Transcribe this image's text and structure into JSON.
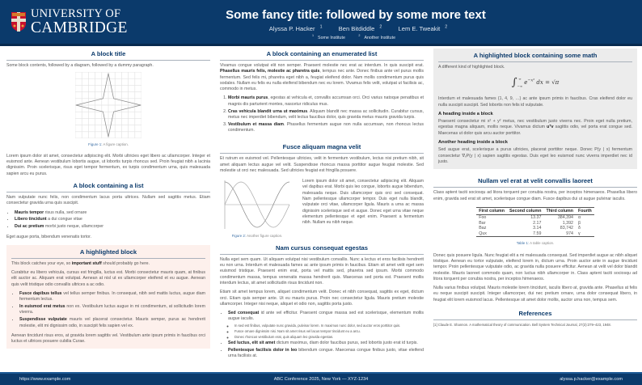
{
  "header": {
    "logo_line1": "UNIVERSITY OF",
    "logo_line2": "CAMBRIDGE",
    "title": "Some fancy title: followed by some more text",
    "authors": [
      {
        "name": "Alyssa P. Hacker",
        "sup": "1"
      },
      {
        "name": "Ben Bitdiddle",
        "sup": "2"
      },
      {
        "name": "Lem E. Tweakit",
        "sup": "2"
      }
    ],
    "affiliations": [
      {
        "sup": "1",
        "name": "Some Institute"
      },
      {
        "sup": "2",
        "name": "Another Institute"
      }
    ],
    "colors": {
      "primary": "#0b3a6b",
      "highlight": "#fdf0ec",
      "highlight_alt": "#ececec"
    }
  },
  "col1": {
    "b1": {
      "title": "A block title",
      "intro": "Some block contents, followed by a diagram, followed by a dummy paragraph.",
      "fig_label": "Figure 1:",
      "fig_caption": "A figure caption.",
      "para": "Lorem ipsum dolor sit amet, consectetur adipiscing elit. Morbi ultricies eget libero ac ullamcorper. Integer et euismod ante. Aenean vestibulum lobortis augue, ut lobortis turpis rhoncus sed. Proin feugiat nibh a lacinia dignissim. Proin scelerisque, risus eget tempor fermentum, ex turpis condimentum urna, quis malesuada sapien arcu eu purus."
    },
    "b2": {
      "title": "A block containing a list",
      "intro": "Nam vulputate nunc felis, non condimentum lacus porta ultrices. Nullam sed sagittis metus. Etiam consectetur gravida urna quis suscipit.",
      "items": [
        {
          "b": "Mauris tempor",
          "t": " risus nulla, sed ornare"
        },
        {
          "b": "Libero tincidunt",
          "t": " a dui congue vitae"
        },
        {
          "b": "Dui ac pretium",
          "t": " morbi justo neque, ullamcorper"
        }
      ],
      "outro": "Eget augue porta, bibendum venenatis tortor."
    },
    "b3": {
      "title": "A highlighted block",
      "p1a": "This block catches your eye, so ",
      "p1b": "important stuff",
      "p1c": " should probably go here.",
      "p2": "Curabitur eu libero vehicula, cursus est fringilla, luctus est. Morbi consectetur mauris quam, at finibus elit auctor ac. Aliquam erat volutpat. Aenean at nisl ut ex ullamcorper eleifend et eu augue. Aenean quis velit tristique odio convallis ultrices a ac odio.",
      "items": [
        {
          "b": "Fusce dapibus tellus",
          "t": " vel tellus semper finibus. In consequat, nibh sed mattis luctus, augue diam fermentum lectus."
        },
        {
          "b": "In euismod erat metus",
          "t": " non ex. Vestibulum luctus augue in mi condimentum, at sollicitudin lorem viverra."
        },
        {
          "b": "Suspendisse vulputate",
          "t": " mauris vel placerat consectetur. Mauris semper, purus ac hendrerit molestie, elit mi dignissim odio, in suscipit felis sapien vel ex."
        }
      ],
      "p3": "Aenean tincidunt risus eros, at gravida lorem sagittis vel. Vestibulum ante ipsum primis in faucibus orci luctus et ultrices posuere cubilia Curae."
    }
  },
  "col2": {
    "b1": {
      "title": "A block containing an enumerated list",
      "pa": "Vivamus congue volutpat elit non semper. Praesent molestie nec erat ac interdum. In quis suscipit erat. ",
      "pb": "Phasellus mauris felis, molestie ac pharetra quis",
      "pc": ", tempus nec ante. Donec finibus ante vel purus mollis fermentum. Sed felis mi, pharetra eget nibh a, feugiat eleifend dolor. Nam mollis condimentum purus quis sodales. Nullam eu felis eu nulla eleifend bibendum nec eu lorem. Vivamus felis velit, volutpat ut facilisis ac, commodo in metus.",
      "items": [
        {
          "b": "Morbi mauris purus",
          "t": ", egestas at vehicula et, convallis accumsan orci. Orci varius natoque penatibus et magnis dis parturient montes, nascetur ridiculus mus."
        },
        {
          "b": "Cras vehicula blandit urna ut maximus",
          "t": ". Aliquam blandit nec massa ac sollicitudin. Curabitur cursus, metus nec imperdiet bibendum, velit lectus faucibus dolor, quis gravida metus mauris gravida turpis."
        },
        {
          "b": "Vestibulum et massa diam",
          "t": ". Phasellus fermentum augue non nulla accumsan, non rhoncus lectus condimentum."
        }
      ]
    },
    "b2": {
      "title": "Fusce aliquam magna velit",
      "para": "Et rutrum ex euismod vel. Pellentesque ultricies, velit in fermentum vestibulum, lectus nisi pretium nibh, sit amet aliquam lectus augue vel velit. Suspendisse rhoncus massa porttitor augue feugiat molestie. Sed molestie ut orci nec malesuada. Sed ultricies feugiat est fringilla posuere.",
      "fig_label": "Figure 2:",
      "fig_caption": "Another figure caption.",
      "side": "Lorem ipsum dolor sit amet, consectetur adipiscing elit. Aliquam vel dapibus erat. Morbi quis leo congue, lobortis augue bibendum, malesuada neque. Duis ullamcorper quis orci sed consequat. Nam pellentesque ullamcorper tempor. Duis eget nulla blandit, vulputate orci vitae, ullamcorper ligula. Mauris a urna ac massa dignissim scelerisque sed et augue. Donec eget urna vitae neque elementum pellentesque et eget enim. Praesent a fermentum nibh. Nullam eu nibh neque."
    },
    "b3": {
      "title": "Nam cursus consequat egestas",
      "p1": "Nulla eget sem quam. Ut aliquam volutpat nisi vestibulum convallis. Nunc a lectus et eros facilisis hendrerit eu non urna. Interdum et malesuada fames ac ante ipsum primis in faucibus. Etiam sit amet velit eget sem euismod tristique. Praesent enim erat, porta vel mattis sed, pharetra sed ipsum. Morbi commodo condimentum massa, tempus venenatis massa hendrerit quis. Maecenas sed porta est. Praesent mollis interdum lectus, sit amet sollicitudin risus tincidunt non.",
      "p2": "Etiam sit amet tempus lorem, aliquet condimentum velit. Donec et nibh consequat, sagittis ex eget, dictum orci. Etiam quis semper ante. Ut eu mauris purus. Proin nec consectetur ligula. Mauris pretium molestie ullamcorper. Integer nisi neque, aliquet et odio non, sagittis porta justo.",
      "items": [
        {
          "b": "Sed consequat",
          "t": " id ante vel efficitur. Praesent congue massa sed est scelerisque, elementum mollis augue iaculis.",
          "sub": [
            "In sed est finibus, vulputate nunc gravida, pulvinar lorem. In maximus nunc dolor, sed auctor eros porttitor quis.",
            "Fusce ornare dignissim nisi. Nam sit amet risus vel lacus tempor tincidunt eu a arcu.",
            "Donec rhoncus vestibulum erat, quis aliquam leo gravida egestas."
          ]
        },
        {
          "b": "Sed luctus, elit sit amet",
          "t": " dictum maximus, diam dolor faucibus purus, sed lobortis justo erat id turpis."
        },
        {
          "b": "Pellentesque facilisis dolor in leo",
          "t": " bibendum congue. Maecenas congue finibus justo, vitae eleifend urna facilisis at."
        }
      ]
    }
  },
  "col3": {
    "b1": {
      "title": "A highlighted block containing some math",
      "intro": "A different kind of highlighted block.",
      "math": {
        "lower": "−∞",
        "upper": "∞",
        "integrand": "e",
        "exp": "−x²",
        "rest": " dx = ",
        "rhs": "√π"
      },
      "p1": "Interdum et malesuada fames {1, 4, 9, …} ac ante ipsum primis in faucibus. Cras eleifend dolor eu nulla suscipit suscipit. Sed lobortis non felis id vulputate.",
      "h1": "A heading inside a block",
      "p2a": "Praesent consectetur mi x² + y² metus, nec vestibulum justo viverra nec. Proin eget nulla pretium, egestas magna aliquam, mollis neque. Vivamus dictum ",
      "p2b": "uᵀv",
      "p2c": " sagittis odio, vel porta erat congue sed. Maecenas ut dolor quis arcu auctor porttitor.",
      "h2": "Another heading inside a block",
      "p3": "Sed augue erat, scelerisque a purus ultricies, placerat porttitor neque. Donec P(y | x) fermentum consectetur ∇ₓP(y | x) sapien sagittis egestas. Duis eget leo euismod nunc viverra imperdiet nec id justo."
    },
    "b2": {
      "title": "Nullam vel erat at velit convallis laoreet",
      "p1": "Class aptent taciti sociosqu ad litora torquent per conubia nostra, per inceptos himenaeos. Phasellus libero enim, gravida sed erat sit amet, scelerisque congue diam. Fusce dapibus dui ut augue pulvinar iaculis.",
      "table": {
        "headers": [
          "First column",
          "Second column",
          "Third column",
          "Fourth"
        ],
        "rows": [
          [
            "Foo",
            "13.37",
            "384,394",
            "α"
          ],
          [
            "Bar",
            "2.17",
            "1,392",
            "β"
          ],
          [
            "Baz",
            "3.14",
            "83,742",
            "δ"
          ],
          [
            "Qux",
            "7.59",
            "974",
            "γ"
          ]
        ]
      },
      "tab_label": "Table 1:",
      "tab_caption": "A table caption.",
      "p2": "Donec quis posuere ligula. Nunc feugiat elit a mi malesuada consequat. Sed imperdiet augue ac nibh aliquet tristique. Aenean eu tortor vulputate, eleifend lorem in, dictum urna. Proin auctor ante in augue tincidunt tempor. Proin pellentesque vulputate odio, ac gravida nulla posuere efficitur. Aenean at velit vel dolor blandit molestie. Mauris laoreet commodo quam, non luctus nibh ullamcorper in. Class aptent taciti sociosqu ad litora torquent per conubia nostra, per inceptos himenaeos.",
      "p3": "Nulla varius finibus volutpat. Mauris molestie lorem tincidunt, iaculis libero at, gravida ante. Phasellus at felis eu neque suscipit suscipit. Integer ullamcorper, dui nec pretium ornare, urna dolor consequat libero, in feugiat elit lorem euismod lacus. Pellentesque sit amet dolor mollis, auctor urna non, tempus sem."
    },
    "refs": {
      "title": "References",
      "items": [
        "[1]  Claude E. Shannon. A mathematical theory of communication. Bell System Technical Journal, 27(3):379–423, 1948."
      ]
    }
  },
  "footer": {
    "url": "https://www.example.com",
    "center": "ABC Conference 2025, New York — XYZ-1234",
    "email": "alyssa.p.hacker@example.com"
  }
}
